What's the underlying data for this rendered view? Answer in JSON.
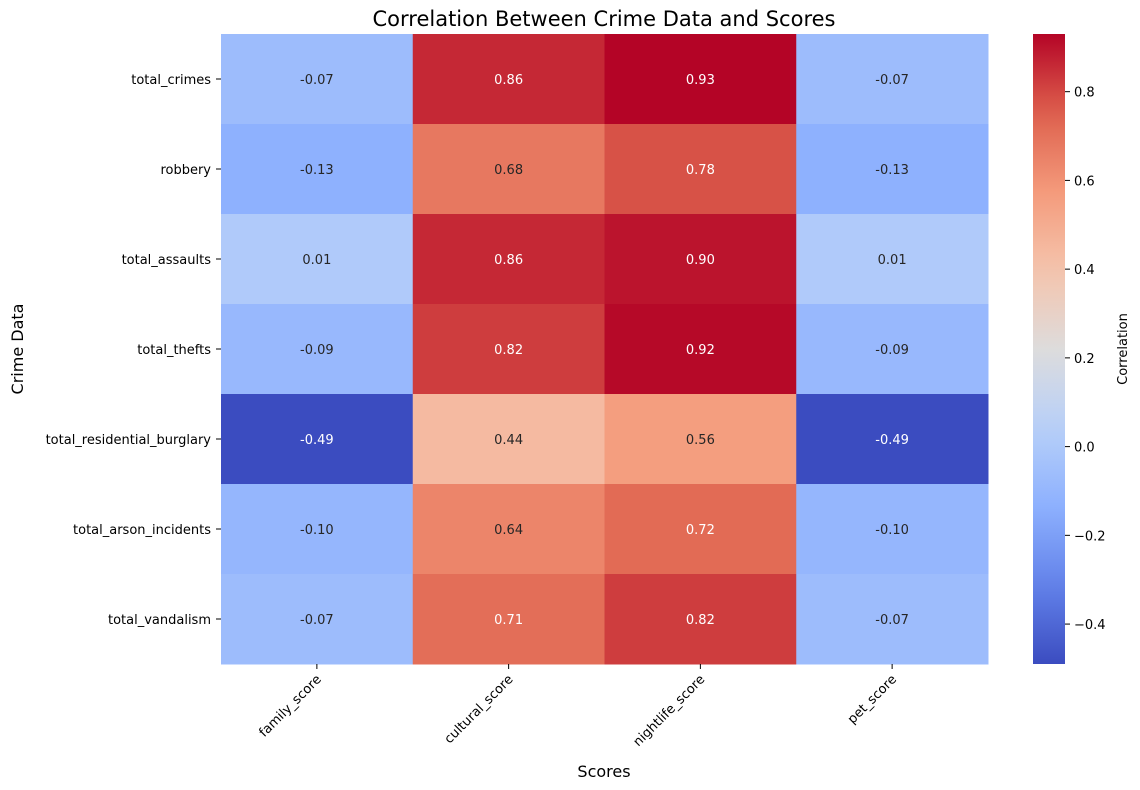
{
  "chart_data": {
    "type": "heatmap",
    "title": "Correlation Between Crime Data and Scores",
    "xlabel": "Scores",
    "ylabel": "Crime Data",
    "x_categories": [
      "family_score",
      "cultural_score",
      "nightlife_score",
      "pet_score"
    ],
    "y_categories": [
      "total_crimes",
      "robbery",
      "total_assaults",
      "total_thefts",
      "total_residential_burglary",
      "total_arson_incidents",
      "total_vandalism"
    ],
    "values": [
      [
        -0.07,
        0.86,
        0.93,
        -0.07
      ],
      [
        -0.13,
        0.68,
        0.78,
        -0.13
      ],
      [
        0.01,
        0.86,
        0.9,
        0.01
      ],
      [
        -0.09,
        0.82,
        0.92,
        -0.09
      ],
      [
        -0.49,
        0.44,
        0.56,
        -0.49
      ],
      [
        -0.1,
        0.64,
        0.72,
        -0.1
      ],
      [
        -0.07,
        0.71,
        0.82,
        -0.07
      ]
    ],
    "annotations": [
      [
        "-0.07",
        "0.86",
        "0.93",
        "-0.07"
      ],
      [
        "-0.13",
        "0.68",
        "0.78",
        "-0.13"
      ],
      [
        "0.01",
        "0.86",
        "0.90",
        "0.01"
      ],
      [
        "-0.09",
        "0.82",
        "0.92",
        "-0.09"
      ],
      [
        "-0.49",
        "0.44",
        "0.56",
        "-0.49"
      ],
      [
        "-0.10",
        "0.64",
        "0.72",
        "-0.10"
      ],
      [
        "-0.07",
        "0.71",
        "0.82",
        "-0.07"
      ]
    ],
    "colormap": "coolwarm",
    "vmin": -0.49,
    "vmax": 0.93,
    "colorbar": {
      "label": "Correlation",
      "ticks": [
        -0.4,
        -0.2,
        0.0,
        0.2,
        0.4,
        0.6,
        0.8
      ],
      "tick_labels": [
        "−0.4",
        "−0.2",
        "0.0",
        "0.2",
        "0.4",
        "0.6",
        "0.8"
      ]
    },
    "grid": false,
    "legend": "colorbar-right"
  }
}
